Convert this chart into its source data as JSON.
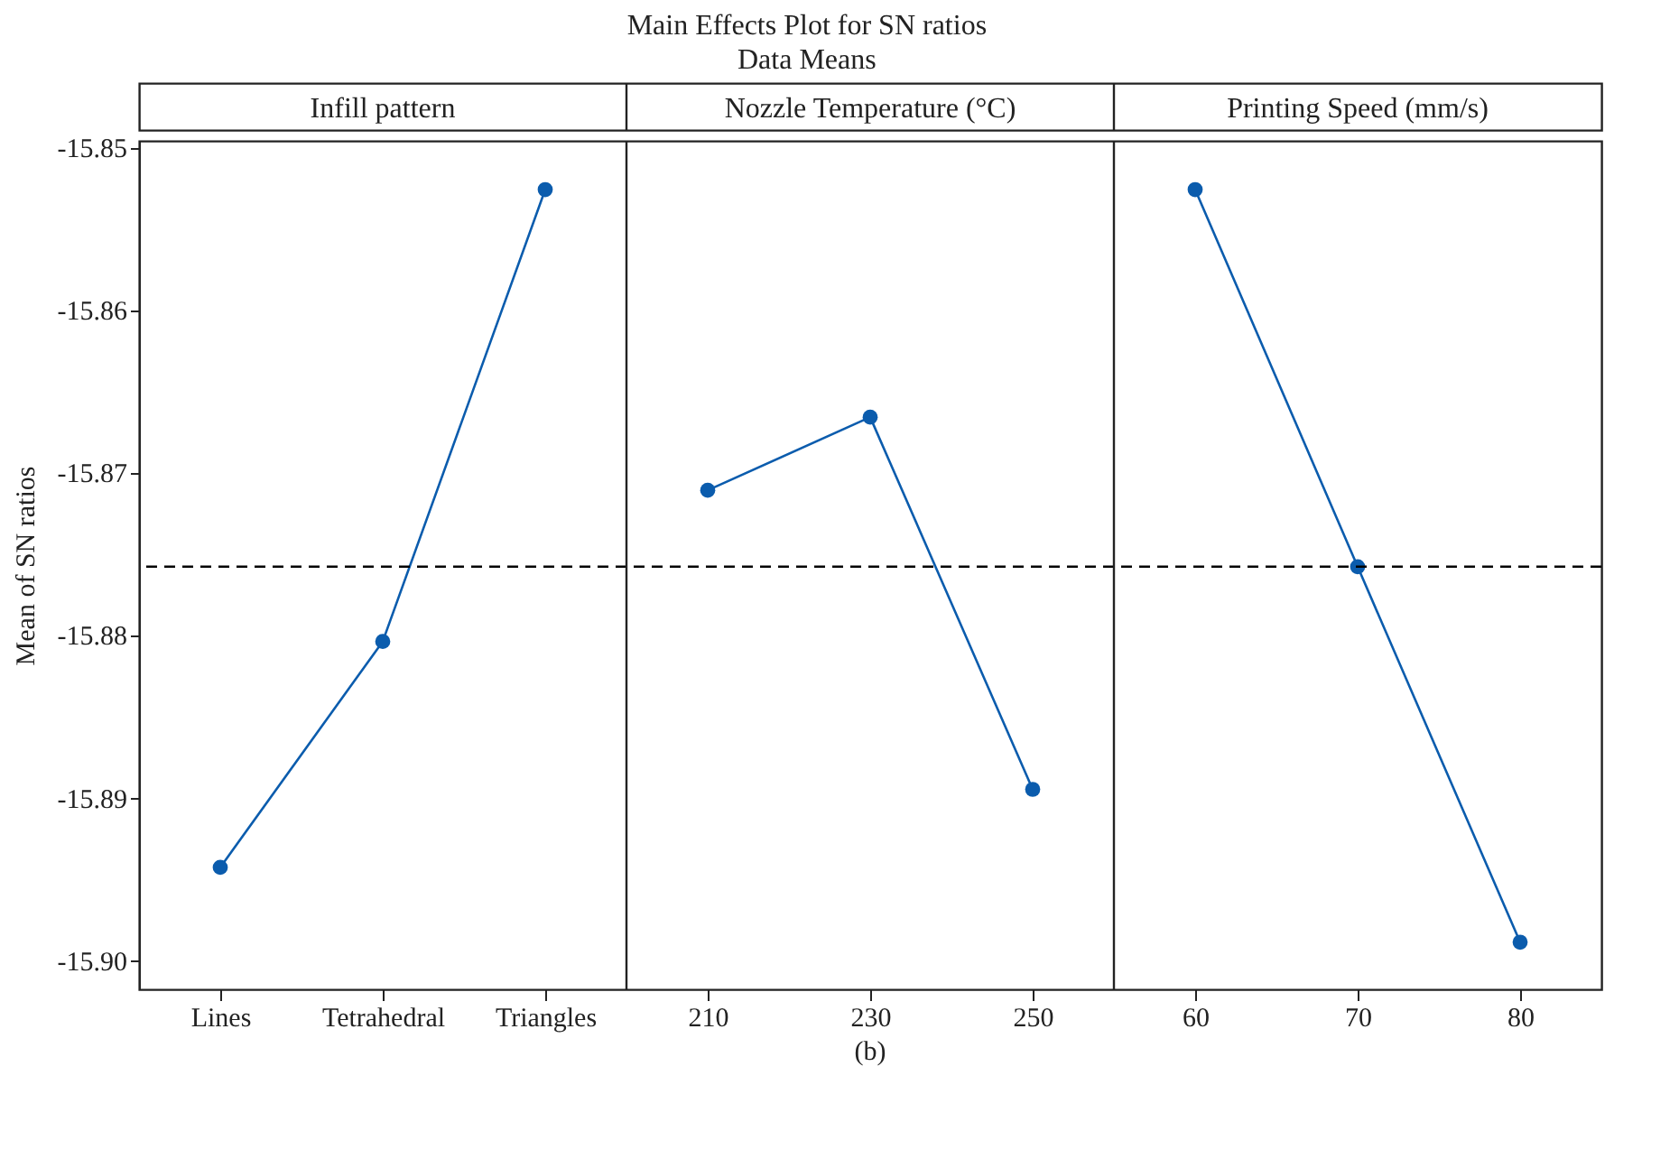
{
  "chart_data": {
    "type": "line",
    "title": "Main Effects Plot for SN ratios",
    "subtitle": "Data Means",
    "ylabel": "Mean of SN ratios",
    "annotations": [
      "Infill pattern",
      "Nozzle Temperature (°C)",
      "Printing Speed (mm/s)",
      "(b)"
    ],
    "categories": [
      "Lines",
      "Tetrahedral",
      "Triangles",
      "210",
      "230",
      "250",
      "60",
      "70",
      "80"
    ],
    "series": [
      {
        "color": "#0b5cad",
        "values": [
          -15.8943,
          -15.8804,
          -15.8526,
          null,
          null,
          null,
          null,
          null,
          null
        ]
      },
      {
        "color": "#0b5cad",
        "values": [
          null,
          null,
          null,
          -15.8711,
          -15.8666,
          -15.8895,
          null,
          null,
          null
        ]
      },
      {
        "color": "#0b5cad",
        "values": [
          null,
          null,
          null,
          null,
          null,
          null,
          -15.8526,
          -15.8758,
          -15.8989
        ]
      }
    ],
    "ylim": [
      -15.9018,
      -15.8496
    ],
    "yticks": [
      -15.85,
      -15.86,
      -15.87,
      -15.88,
      -15.89,
      {
        "value": -15.9,
        "label": "-15.90"
      }
    ],
    "ref_lines": [
      {
        "axis": "y",
        "value": -15.8758,
        "line_style": "dashed",
        "color": "#000000"
      }
    ],
    "marker": "circle",
    "grid": false
  }
}
